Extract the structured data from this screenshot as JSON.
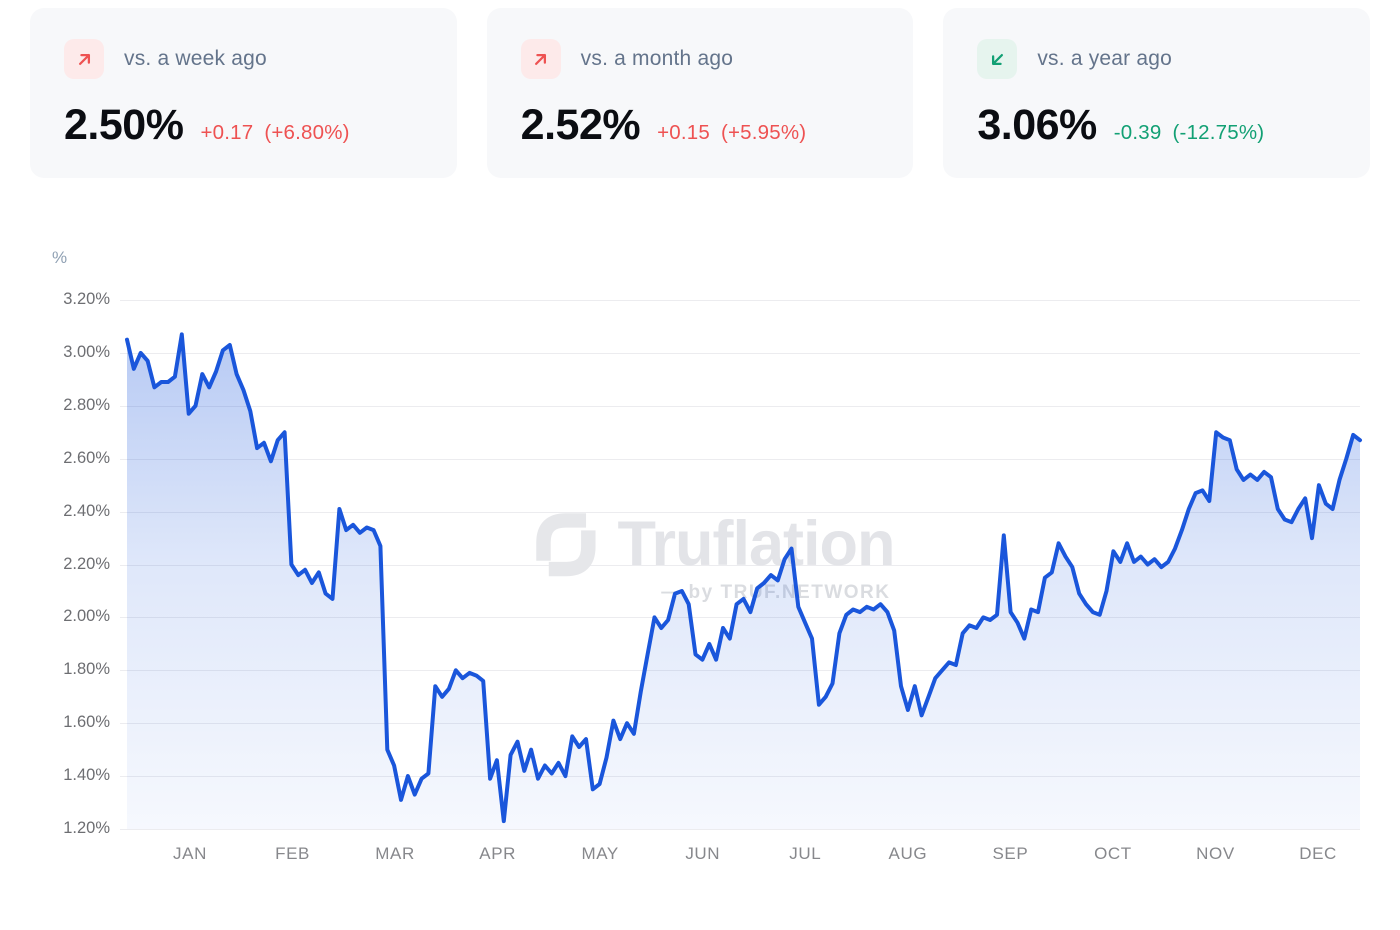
{
  "cards": [
    {
      "label": "vs. a week ago",
      "value": "2.50%",
      "delta": "+0.17",
      "delta_pct": "(+6.80%)",
      "direction": "up",
      "icon": "trend-up-right-icon",
      "accent": "#ee5252",
      "icon_bg": "#fdeaea"
    },
    {
      "label": "vs. a month ago",
      "value": "2.52%",
      "delta": "+0.15",
      "delta_pct": "(+5.95%)",
      "direction": "up",
      "icon": "trend-up-right-icon",
      "accent": "#ee5252",
      "icon_bg": "#fdeaea"
    },
    {
      "label": "vs. a year ago",
      "value": "3.06%",
      "delta": "-0.39",
      "delta_pct": "(-12.75%)",
      "direction": "down",
      "icon": "trend-down-left-icon",
      "accent": "#12a074",
      "icon_bg": "#e6f4ee"
    }
  ],
  "watermark": {
    "brand": "Truflation",
    "byline": "— by TRUF.NETWORK"
  },
  "chart_data": {
    "type": "area",
    "unit": "%",
    "ylim": [
      1.2,
      3.2
    ],
    "y_tick_step": 0.2,
    "y_ticks": [
      "3.20%",
      "3.00%",
      "2.80%",
      "2.60%",
      "2.40%",
      "2.20%",
      "2.00%",
      "1.80%",
      "1.60%",
      "1.40%",
      "1.20%"
    ],
    "categories": [
      "JAN",
      "FEB",
      "MAR",
      "APR",
      "MAY",
      "JUN",
      "JUL",
      "AUG",
      "SEP",
      "OCT",
      "NOV",
      "DEC"
    ],
    "line_color": "#1a56db",
    "grid_color": "#ececef",
    "fill_top_opacity": 0.34,
    "fill_bottom_opacity": 0.04,
    "values": [
      3.05,
      2.94,
      3.0,
      2.97,
      2.87,
      2.89,
      2.89,
      2.91,
      3.07,
      2.77,
      2.8,
      2.92,
      2.87,
      2.93,
      3.01,
      3.03,
      2.92,
      2.86,
      2.78,
      2.64,
      2.66,
      2.59,
      2.67,
      2.7,
      2.2,
      2.16,
      2.18,
      2.13,
      2.17,
      2.09,
      2.07,
      2.41,
      2.33,
      2.35,
      2.32,
      2.34,
      2.33,
      2.27,
      1.5,
      1.44,
      1.31,
      1.4,
      1.33,
      1.39,
      1.41,
      1.74,
      1.7,
      1.73,
      1.8,
      1.77,
      1.79,
      1.78,
      1.76,
      1.39,
      1.46,
      1.23,
      1.48,
      1.53,
      1.42,
      1.5,
      1.39,
      1.44,
      1.41,
      1.45,
      1.4,
      1.55,
      1.51,
      1.54,
      1.35,
      1.37,
      1.47,
      1.61,
      1.54,
      1.6,
      1.56,
      1.72,
      1.86,
      2.0,
      1.96,
      1.99,
      2.09,
      2.1,
      2.05,
      1.86,
      1.84,
      1.9,
      1.84,
      1.96,
      1.92,
      2.05,
      2.07,
      2.02,
      2.11,
      2.13,
      2.16,
      2.14,
      2.22,
      2.26,
      2.04,
      1.98,
      1.92,
      1.67,
      1.7,
      1.75,
      1.94,
      2.01,
      2.03,
      2.02,
      2.04,
      2.03,
      2.05,
      2.02,
      1.95,
      1.74,
      1.65,
      1.74,
      1.63,
      1.7,
      1.77,
      1.8,
      1.83,
      1.82,
      1.94,
      1.97,
      1.96,
      2.0,
      1.99,
      2.01,
      2.31,
      2.02,
      1.98,
      1.92,
      2.03,
      2.02,
      2.15,
      2.17,
      2.28,
      2.23,
      2.19,
      2.09,
      2.05,
      2.02,
      2.01,
      2.1,
      2.25,
      2.21,
      2.28,
      2.21,
      2.23,
      2.2,
      2.22,
      2.19,
      2.21,
      2.26,
      2.33,
      2.41,
      2.47,
      2.48,
      2.44,
      2.7,
      2.68,
      2.67,
      2.56,
      2.52,
      2.54,
      2.52,
      2.55,
      2.53,
      2.41,
      2.37,
      2.36,
      2.41,
      2.45,
      2.3,
      2.5,
      2.43,
      2.41,
      2.52,
      2.6,
      2.69,
      2.67
    ]
  }
}
